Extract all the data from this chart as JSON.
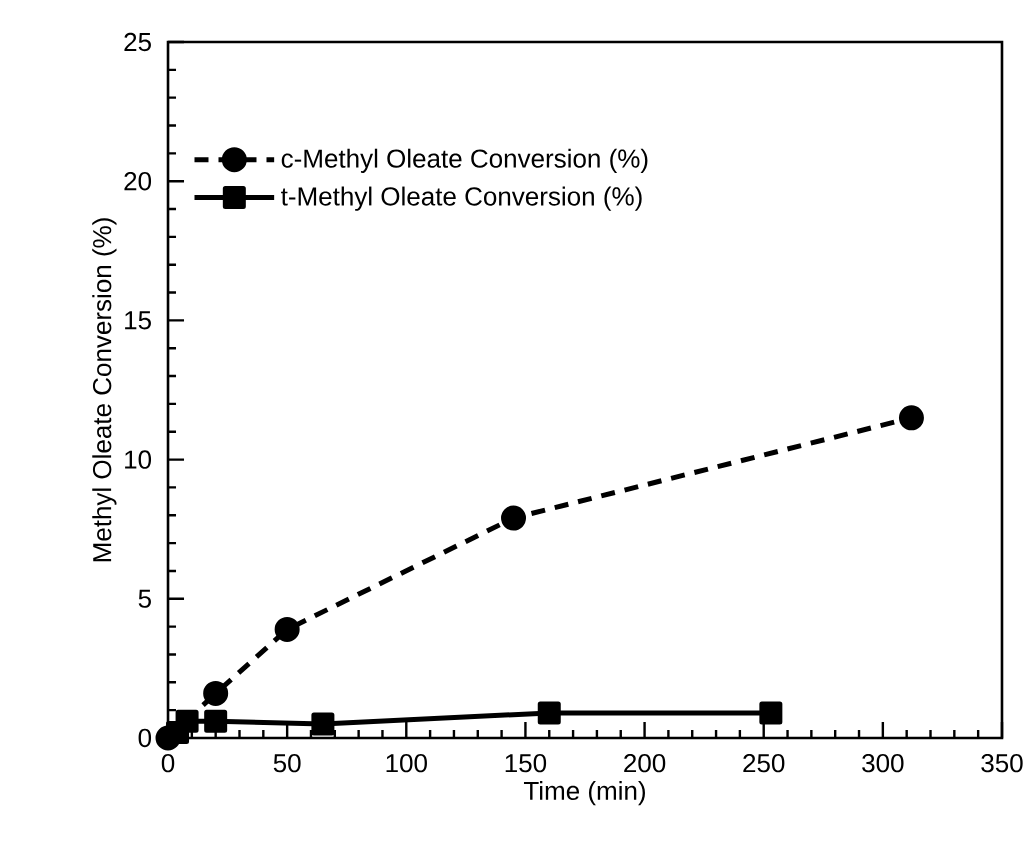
{
  "chart_data": {
    "type": "line",
    "xlabel": "Time (min)",
    "ylabel": "Methyl Oleate Conversion (%)",
    "xlim": [
      0,
      350
    ],
    "ylim": [
      0,
      25
    ],
    "xticks": [
      0,
      50,
      100,
      150,
      200,
      250,
      300,
      350
    ],
    "yticks": [
      0,
      5,
      10,
      15,
      20,
      25
    ],
    "legend": "top left",
    "grid": false,
    "series": [
      {
        "name": "c-Methyl Oleate Conversion (%)",
        "color": "#000000",
        "marker": "circle",
        "line_style": "dashed",
        "x": [
          0,
          10,
          20,
          50,
          145,
          312
        ],
        "values": [
          0,
          null,
          1.6,
          3.9,
          7.9,
          11.5
        ]
      },
      {
        "name": "t-Methyl Oleate Conversion (%)",
        "color": "#000000",
        "marker": "square",
        "line_style": "solid",
        "x": [
          4,
          8,
          20,
          65,
          160,
          253
        ],
        "values": [
          0.2,
          0.6,
          0.6,
          0.5,
          0.9,
          0.9
        ]
      }
    ]
  }
}
